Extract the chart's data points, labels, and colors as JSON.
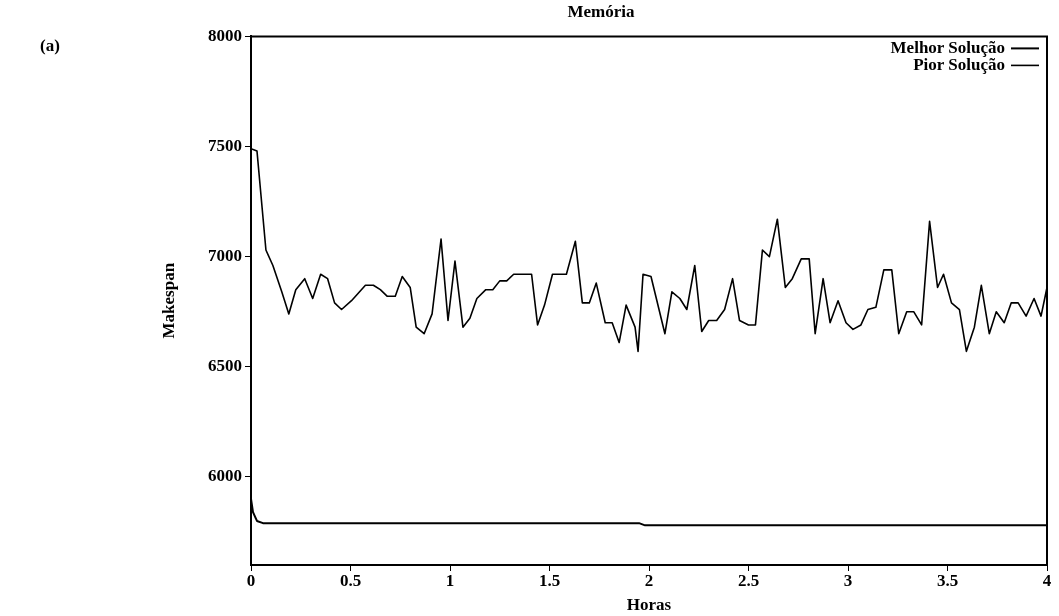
{
  "chart_data": {
    "type": "line",
    "title": "Memória",
    "xlabel": "Horas",
    "ylabel": "Makespan",
    "annotations": [
      "(a)"
    ],
    "xlim": [
      0,
      4
    ],
    "xticks": [
      0,
      0.5,
      1,
      1.5,
      2,
      2.5,
      3,
      3.5,
      4
    ],
    "ylim": [
      5600,
      8000
    ],
    "yticks": [
      6000,
      6500,
      7000,
      7500,
      8000
    ],
    "grid": false,
    "legend": "top right",
    "marker": "none",
    "line_style": "solid",
    "series": [
      {
        "name": "Melhor Solução",
        "color": "#000000",
        "x": [
          0,
          0.01,
          0.03,
          0.06,
          1.95,
          1.98,
          4
        ],
        "values": [
          5900,
          5840,
          5800,
          5790,
          5790,
          5780,
          5780
        ]
      },
      {
        "name": "Pior Solução",
        "color": "#000000",
        "x": [
          0,
          0.03,
          0.06,
          0.075,
          0.11,
          0.155,
          0.19,
          0.225,
          0.27,
          0.31,
          0.35,
          0.385,
          0.42,
          0.455,
          0.505,
          0.575,
          0.615,
          0.65,
          0.685,
          0.725,
          0.76,
          0.8,
          0.83,
          0.87,
          0.91,
          0.955,
          0.99,
          1.025,
          1.065,
          1.1,
          1.135,
          1.18,
          1.215,
          1.25,
          1.285,
          1.32,
          1.41,
          1.44,
          1.475,
          1.515,
          1.585,
          1.63,
          1.665,
          1.7,
          1.735,
          1.78,
          1.815,
          1.85,
          1.885,
          1.93,
          1.945,
          1.97,
          2.01,
          2.08,
          2.115,
          2.155,
          2.19,
          2.23,
          2.265,
          2.3,
          2.34,
          2.38,
          2.42,
          2.455,
          2.5,
          2.535,
          2.57,
          2.605,
          2.645,
          2.685,
          2.72,
          2.765,
          2.805,
          2.835,
          2.875,
          2.91,
          2.95,
          2.99,
          3.025,
          3.065,
          3.1,
          3.14,
          3.18,
          3.22,
          3.255,
          3.295,
          3.33,
          3.37,
          3.41,
          3.45,
          3.48,
          3.52,
          3.56,
          3.595,
          3.635,
          3.67,
          3.71,
          3.745,
          3.785,
          3.82,
          3.855,
          3.895,
          3.935,
          3.97,
          4
        ],
        "values": [
          7490,
          7480,
          7180,
          7030,
          6960,
          6840,
          6740,
          6850,
          6900,
          6810,
          6920,
          6900,
          6790,
          6760,
          6800,
          6870,
          6870,
          6850,
          6820,
          6820,
          6910,
          6860,
          6680,
          6650,
          6740,
          7080,
          6710,
          6980,
          6680,
          6720,
          6810,
          6850,
          6850,
          6890,
          6890,
          6920,
          6920,
          6690,
          6780,
          6920,
          6920,
          7070,
          6790,
          6790,
          6880,
          6700,
          6700,
          6610,
          6780,
          6680,
          6570,
          6920,
          6910,
          6650,
          6840,
          6810,
          6760,
          6960,
          6660,
          6710,
          6710,
          6760,
          6900,
          6710,
          6690,
          6690,
          7030,
          7000,
          7170,
          6860,
          6900,
          6990,
          6990,
          6650,
          6900,
          6700,
          6800,
          6700,
          6670,
          6690,
          6760,
          6770,
          6940,
          6940,
          6650,
          6750,
          6750,
          6690,
          7160,
          6860,
          6920,
          6790,
          6760,
          6570,
          6680,
          6870,
          6650,
          6750,
          6700,
          6790,
          6790,
          6730,
          6810,
          6730,
          6860
        ]
      }
    ]
  }
}
